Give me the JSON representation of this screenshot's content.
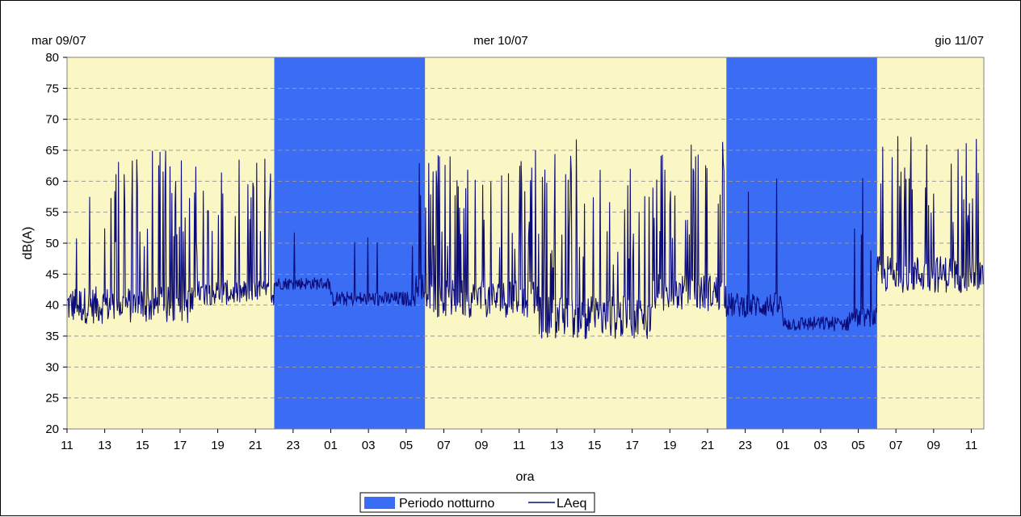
{
  "chart_data": {
    "type": "line",
    "ylabel": "dB(A)",
    "xlabel": "ora",
    "ylim": [
      20,
      80
    ],
    "yticks": [
      "20",
      "25",
      "30",
      "35",
      "40",
      "45",
      "50",
      "55",
      "60",
      "65",
      "70",
      "75",
      "80"
    ],
    "grid": "horizontal dashed",
    "legend_position": "bottom",
    "day_labels": [
      "mar 09/07",
      "mer 10/07",
      "gio 11/07"
    ],
    "x_start": "2024-07-09T11:00",
    "x_end": "2024-07-11T11:40",
    "xticks": [
      "11",
      "13",
      "15",
      "17",
      "19",
      "21",
      "23",
      "01",
      "03",
      "05",
      "07",
      "09",
      "11",
      "13",
      "15",
      "17",
      "19",
      "21",
      "23",
      "01",
      "03",
      "05",
      "07",
      "09",
      "11"
    ],
    "legend": {
      "night_label": "Periodo notturno",
      "line_label": "LAeq"
    },
    "colors": {
      "day_band": "#fbf7c4",
      "night_band": "#3a6cf4",
      "line": "#0b0b7a"
    },
    "night_periods": [
      {
        "start": "2024-07-09T22:00",
        "end": "2024-07-10T06:00"
      },
      {
        "start": "2024-07-10T22:00",
        "end": "2024-07-11T06:00"
      }
    ],
    "series": [
      {
        "name": "LAeq",
        "segments": [
          {
            "start": "2024-07-09T11:00",
            "end": "2024-07-09T18:00",
            "baseline": 40,
            "noise": 3,
            "peak_max": 65,
            "peak_prob": 0.18
          },
          {
            "start": "2024-07-09T18:00",
            "end": "2024-07-09T22:00",
            "baseline": 42,
            "noise": 2,
            "peak_max": 64,
            "peak_prob": 0.16
          },
          {
            "start": "2024-07-09T22:00",
            "end": "2024-07-10T01:00",
            "baseline": 43.5,
            "noise": 1,
            "peak_max": 65,
            "peak_prob": 0.01
          },
          {
            "start": "2024-07-10T01:00",
            "end": "2024-07-10T05:30",
            "baseline": 41,
            "noise": 1.2,
            "peak_max": 51,
            "peak_prob": 0.01
          },
          {
            "start": "2024-07-10T05:30",
            "end": "2024-07-10T06:00",
            "baseline": 43,
            "noise": 2,
            "peak_max": 64,
            "peak_prob": 0.08
          },
          {
            "start": "2024-07-10T06:00",
            "end": "2024-07-10T12:00",
            "baseline": 41,
            "noise": 3,
            "peak_max": 65,
            "peak_prob": 0.19
          },
          {
            "start": "2024-07-10T12:00",
            "end": "2024-07-10T18:00",
            "baseline": 38,
            "noise": 3.5,
            "peak_max": 67,
            "peak_prob": 0.2
          },
          {
            "start": "2024-07-10T18:00",
            "end": "2024-07-10T22:00",
            "baseline": 42,
            "noise": 3,
            "peak_max": 66.5,
            "peak_prob": 0.18
          },
          {
            "start": "2024-07-10T22:00",
            "end": "2024-07-11T01:00",
            "baseline": 40,
            "noise": 2,
            "peak_max": 62,
            "peak_prob": 0.03
          },
          {
            "start": "2024-07-11T01:00",
            "end": "2024-07-11T04:30",
            "baseline": 37,
            "noise": 1.2,
            "peak_max": 40,
            "peak_prob": 0.0
          },
          {
            "start": "2024-07-11T04:30",
            "end": "2024-07-11T06:00",
            "baseline": 38,
            "noise": 1.5,
            "peak_max": 69,
            "peak_prob": 0.04
          },
          {
            "start": "2024-07-11T06:00",
            "end": "2024-07-11T11:40",
            "baseline": 45,
            "noise": 3,
            "peak_max": 67.5,
            "peak_prob": 0.2
          }
        ]
      }
    ]
  }
}
